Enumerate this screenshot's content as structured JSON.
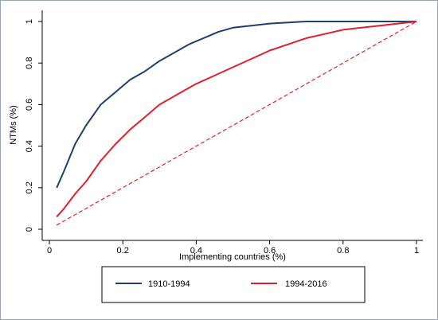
{
  "chart_data": {
    "type": "line",
    "xlabel": "Implementing countries (%)",
    "ylabel": "NTMs (%)",
    "xlim": [
      0,
      1
    ],
    "ylim": [
      0,
      1
    ],
    "x_ticks": [
      0,
      0.2,
      0.4,
      0.6,
      0.8,
      1
    ],
    "y_ticks": [
      0,
      0.2,
      0.4,
      0.6,
      0.8,
      1
    ],
    "x_tick_labels": [
      "0",
      "0.2",
      "0.4",
      "0.6",
      "0.8",
      "1"
    ],
    "y_tick_labels": [
      "0",
      "0.2",
      "0.4",
      "0.6",
      "0.8",
      "1"
    ],
    "grid": false,
    "legend_position": "bottom",
    "series": [
      {
        "name": "1910-1994",
        "color": "#1f3f6e",
        "dash": "solid",
        "x": [
          0.02,
          0.04,
          0.07,
          0.1,
          0.14,
          0.18,
          0.22,
          0.26,
          0.3,
          0.34,
          0.38,
          0.42,
          0.46,
          0.5,
          0.55,
          0.6,
          0.65,
          0.7,
          0.8,
          0.9,
          1.0
        ],
        "y": [
          0.2,
          0.28,
          0.41,
          0.5,
          0.6,
          0.66,
          0.72,
          0.76,
          0.81,
          0.85,
          0.89,
          0.92,
          0.95,
          0.97,
          0.98,
          0.99,
          0.995,
          1.0,
          1.0,
          1.0,
          1.0
        ]
      },
      {
        "name": "1994-2016",
        "color": "#e0202e",
        "dash": "solid",
        "x": [
          0.02,
          0.04,
          0.07,
          0.1,
          0.14,
          0.18,
          0.22,
          0.26,
          0.3,
          0.35,
          0.4,
          0.45,
          0.5,
          0.55,
          0.6,
          0.65,
          0.7,
          0.75,
          0.8,
          0.85,
          0.9,
          0.95,
          1.0
        ],
        "y": [
          0.06,
          0.1,
          0.17,
          0.23,
          0.33,
          0.41,
          0.48,
          0.54,
          0.6,
          0.65,
          0.7,
          0.74,
          0.78,
          0.82,
          0.86,
          0.89,
          0.92,
          0.94,
          0.96,
          0.97,
          0.98,
          0.99,
          1.0
        ]
      },
      {
        "color": "#e0202e",
        "dash": "dashed",
        "x": [
          0.02,
          1.0
        ],
        "y": [
          0.02,
          1.0
        ]
      }
    ]
  }
}
